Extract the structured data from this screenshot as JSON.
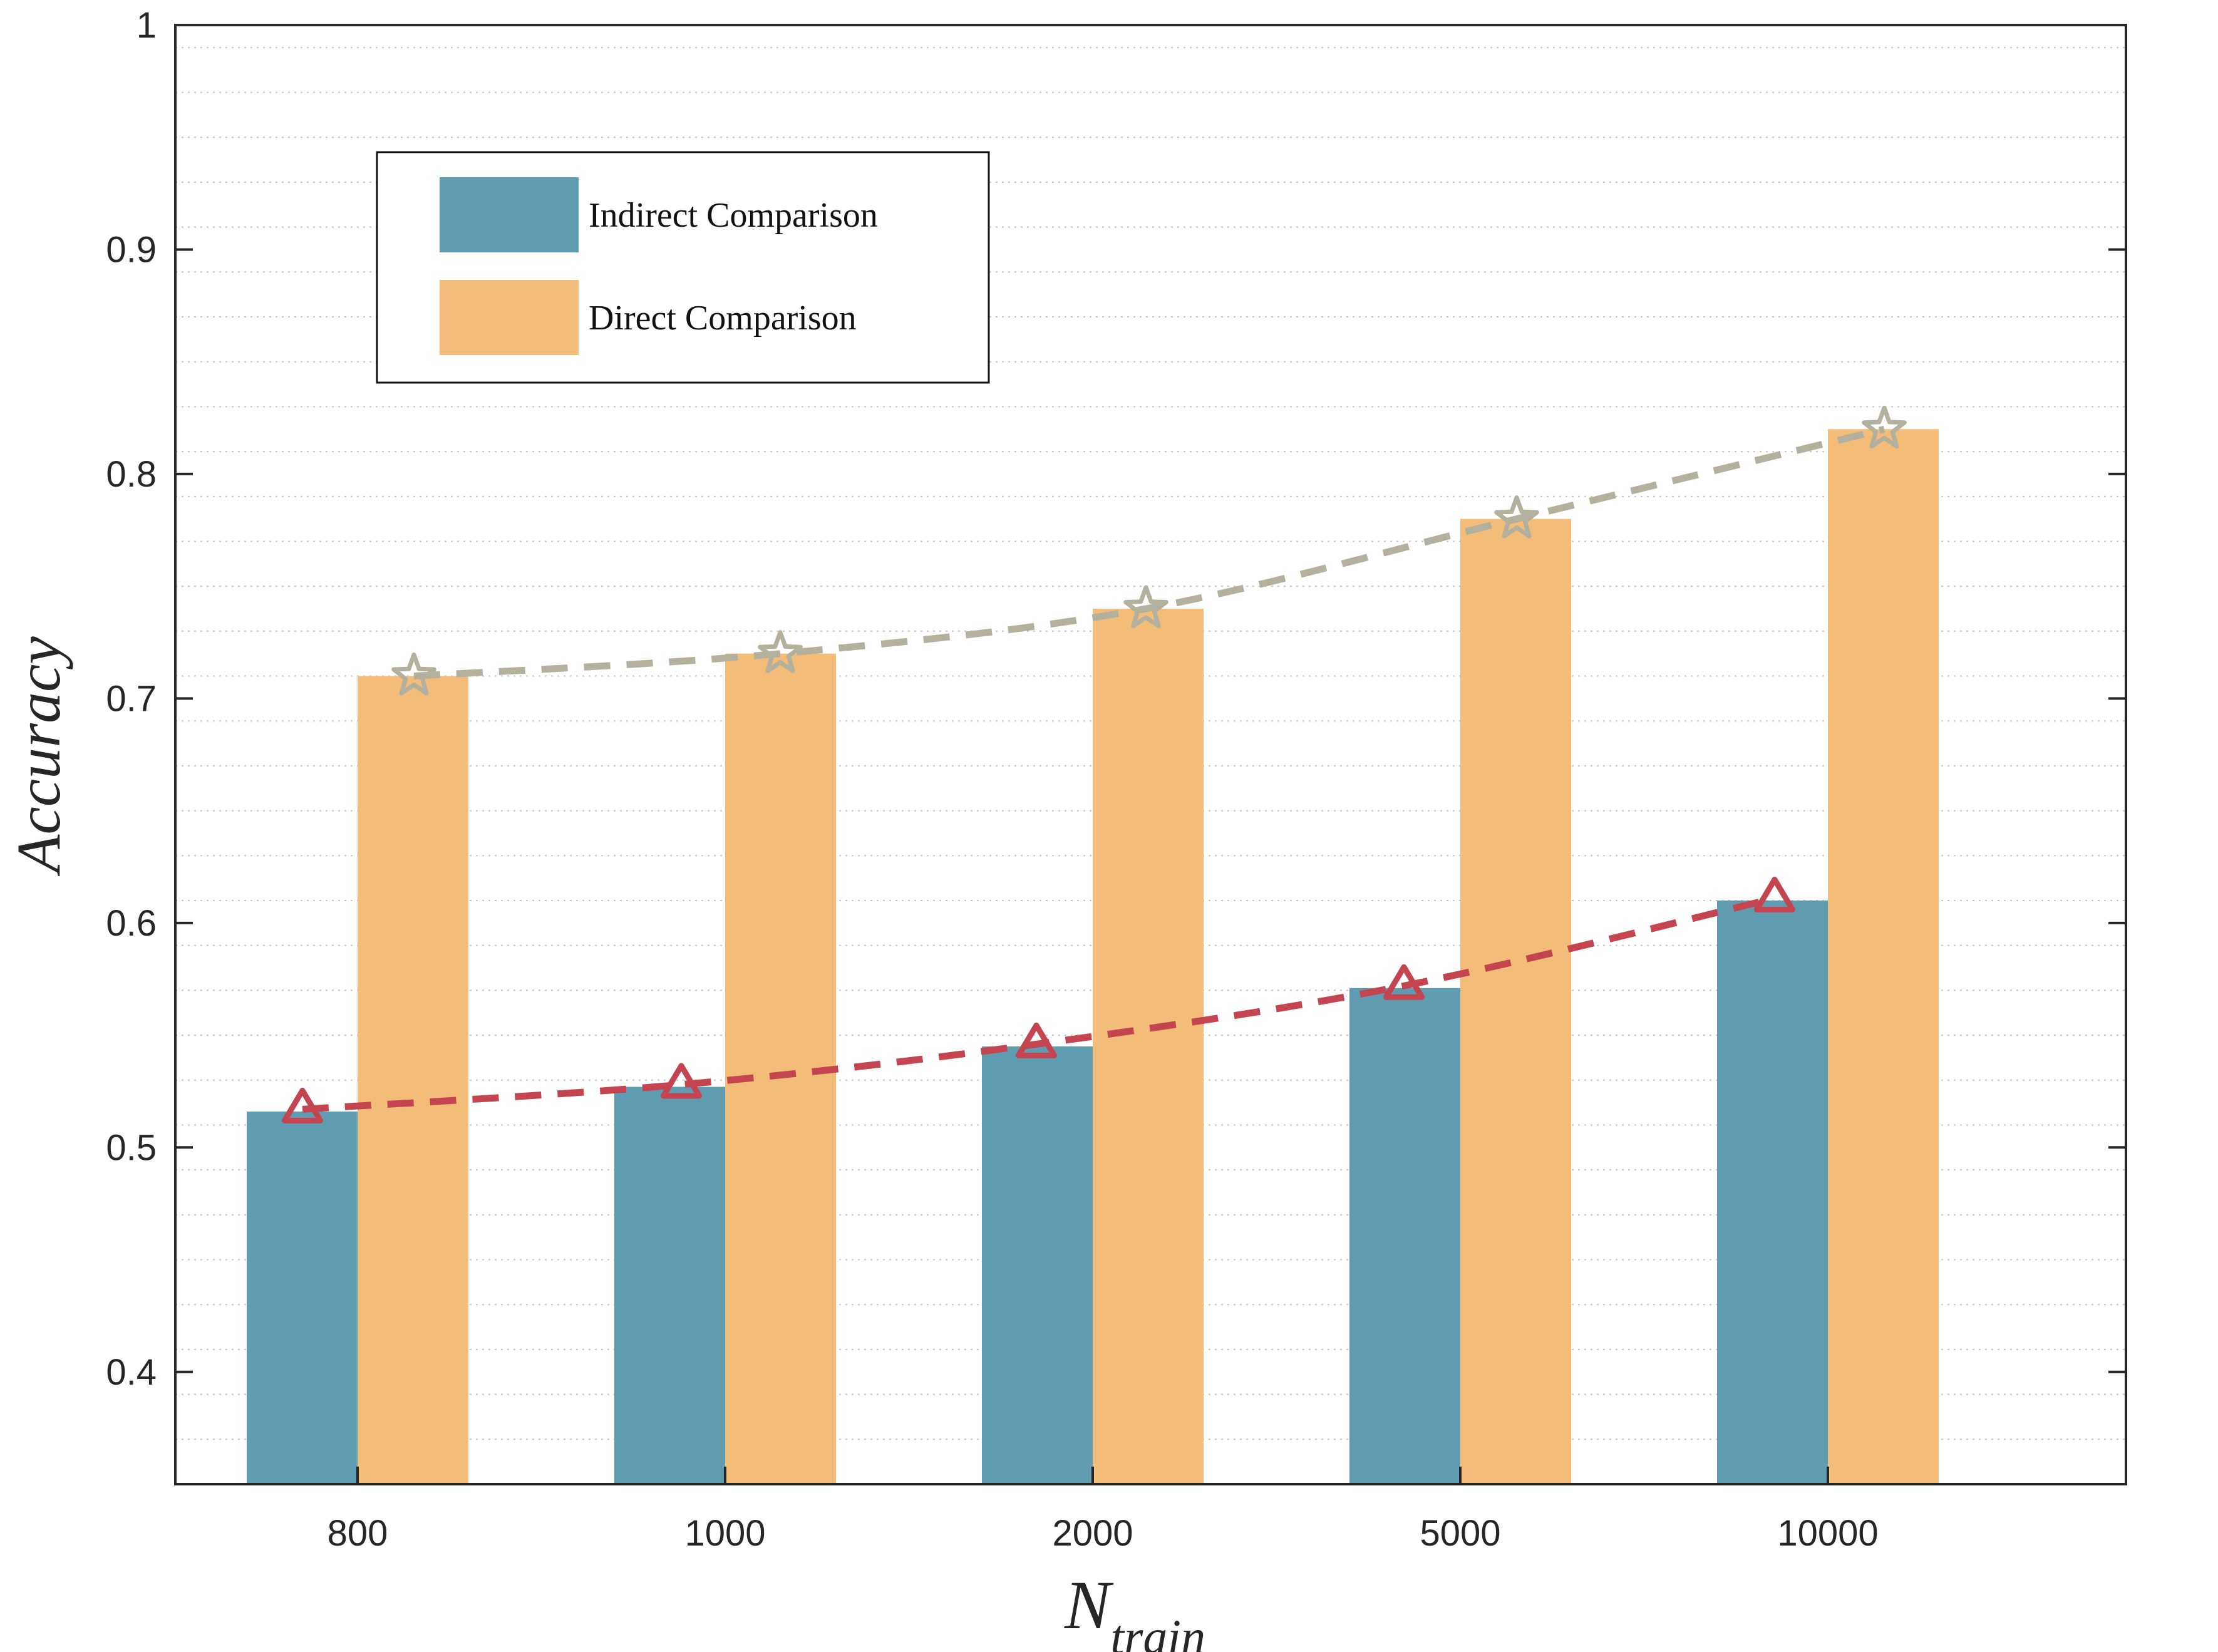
{
  "chart_data": {
    "type": "bar",
    "categories": [
      "800",
      "1000",
      "2000",
      "5000",
      "10000"
    ],
    "series": [
      {
        "name": "Indirect Comparison",
        "values": [
          0.516,
          0.527,
          0.545,
          0.571,
          0.61
        ],
        "color": "#5f9cb2"
      },
      {
        "name": "Direct Comparison",
        "values": [
          0.71,
          0.72,
          0.74,
          0.78,
          0.82
        ],
        "color": "#f3bc78"
      }
    ],
    "trend_lines": [
      {
        "series": "Indirect Comparison",
        "marker": "triangle",
        "style": "dashed",
        "color": "#c44450",
        "values": [
          0.517,
          0.528,
          0.546,
          0.572,
          0.611
        ]
      },
      {
        "series": "Direct Comparison",
        "marker": "star",
        "style": "dashed",
        "color": "#b3b19e",
        "values": [
          0.71,
          0.72,
          0.74,
          0.78,
          0.82
        ]
      }
    ],
    "ylim": [
      0.35,
      1.0
    ],
    "yticks": [
      0.4,
      0.5,
      0.6,
      0.7,
      0.8,
      0.9,
      1.0
    ],
    "ytick_labels": [
      "0.4",
      "0.5",
      "0.6",
      "0.7",
      "0.8",
      "0.9",
      "1"
    ],
    "xlabel": "N",
    "xlabel_subscript": "train",
    "ylabel": "Accuracy",
    "grid": "minor-dotted",
    "legend_position": "top-left"
  }
}
